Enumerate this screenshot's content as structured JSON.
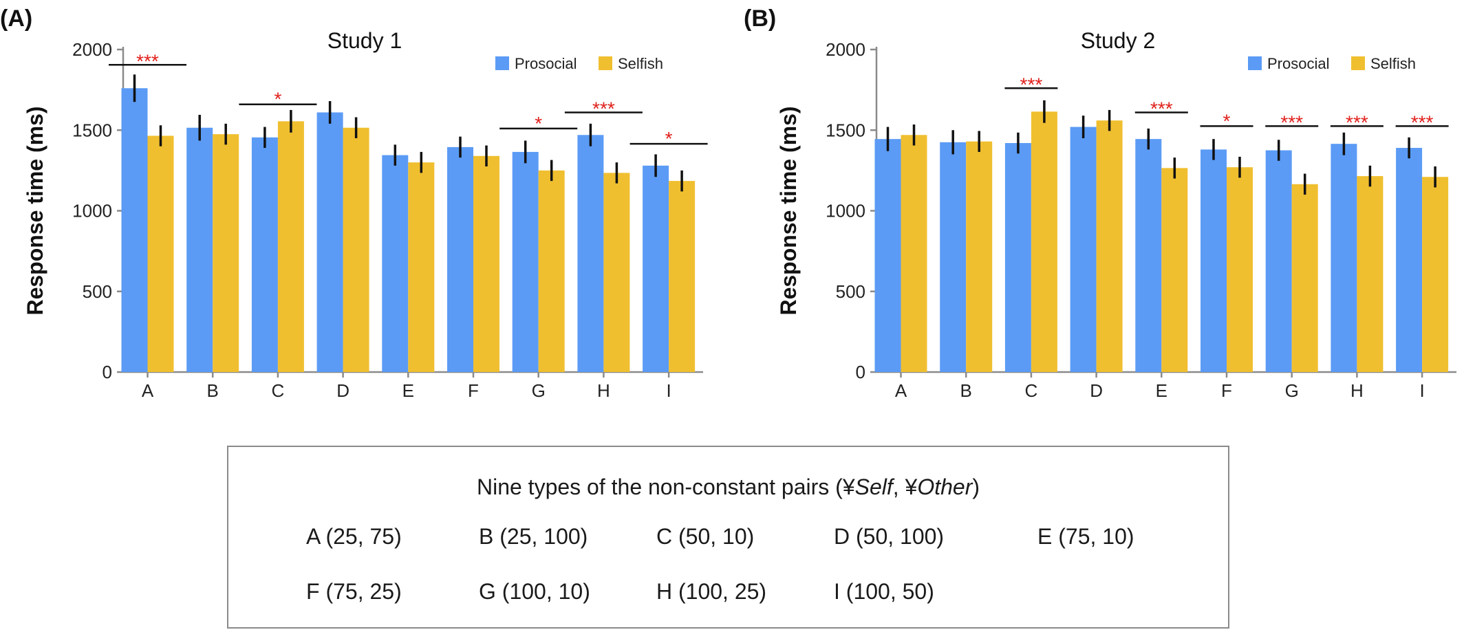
{
  "colors": {
    "prosocial": "#5b9bf5",
    "selfish": "#f0bf30",
    "axis": "#8a8a8a",
    "error_bar": "#111111",
    "significance_star": "#e0201b",
    "significance_line": "#111111"
  },
  "chart_data": [
    {
      "panel_label": "(A)",
      "type": "bar",
      "title": "Study 1",
      "ylabel": "Response time (ms)",
      "xlabel": "",
      "ylim": [
        0,
        2000
      ],
      "yticks": [
        "0",
        "500",
        "1000",
        "1500",
        "2000"
      ],
      "ytick_values": [
        0,
        500,
        1000,
        1500,
        2000
      ],
      "categories": [
        "A",
        "B",
        "C",
        "D",
        "E",
        "F",
        "G",
        "H",
        "I"
      ],
      "legend_position": "top-right",
      "series": [
        {
          "name": "Prosocial",
          "values": [
            1760,
            1515,
            1455,
            1610,
            1345,
            1395,
            1365,
            1470,
            1280
          ],
          "error": [
            85,
            80,
            65,
            70,
            65,
            65,
            70,
            70,
            70
          ]
        },
        {
          "name": "Selfish",
          "values": [
            1465,
            1475,
            1555,
            1515,
            1300,
            1340,
            1250,
            1235,
            1185
          ],
          "error": [
            65,
            65,
            70,
            65,
            65,
            65,
            65,
            65,
            65
          ]
        }
      ],
      "significance": [
        "***",
        "",
        "*",
        "",
        "",
        "",
        "*",
        "***",
        "*"
      ],
      "significance_bar_y": [
        1905,
        null,
        1660,
        null,
        null,
        null,
        1510,
        1610,
        1415
      ]
    },
    {
      "panel_label": "(B)",
      "type": "bar",
      "title": "Study 2",
      "ylabel": "Response time (ms)",
      "xlabel": "",
      "ylim": [
        0,
        2000
      ],
      "yticks": [
        "0",
        "500",
        "1000",
        "1500",
        "2000"
      ],
      "ytick_values": [
        0,
        500,
        1000,
        1500,
        2000
      ],
      "categories": [
        "A",
        "B",
        "C",
        "D",
        "E",
        "F",
        "G",
        "H",
        "I"
      ],
      "legend_position": "top-right",
      "series": [
        {
          "name": "Prosocial",
          "values": [
            1445,
            1425,
            1420,
            1520,
            1445,
            1380,
            1375,
            1415,
            1390
          ],
          "error": [
            75,
            75,
            65,
            70,
            65,
            65,
            65,
            70,
            65
          ]
        },
        {
          "name": "Selfish",
          "values": [
            1470,
            1430,
            1615,
            1560,
            1265,
            1270,
            1165,
            1215,
            1210
          ],
          "error": [
            65,
            65,
            70,
            65,
            65,
            65,
            65,
            65,
            65
          ]
        }
      ],
      "significance": [
        "",
        "",
        "***",
        "",
        "***",
        "*",
        "***",
        "***",
        "***"
      ],
      "significance_bar_y": [
        null,
        null,
        1760,
        null,
        1610,
        1525,
        1525,
        1525,
        1525
      ]
    }
  ],
  "legend_box": {
    "title_prefix": "Nine types of the non-constant pairs (¥",
    "title_self": "Self",
    "title_mid": ", ¥",
    "title_other": "Other",
    "title_suffix": ")",
    "items": [
      "A (25, 75)",
      "B (25, 100)",
      "C (50, 10)",
      "D (50, 100)",
      "E (75, 10)",
      "F (75, 25)",
      "G (100, 10)",
      "H (100, 25)",
      "I (100, 50)"
    ]
  }
}
